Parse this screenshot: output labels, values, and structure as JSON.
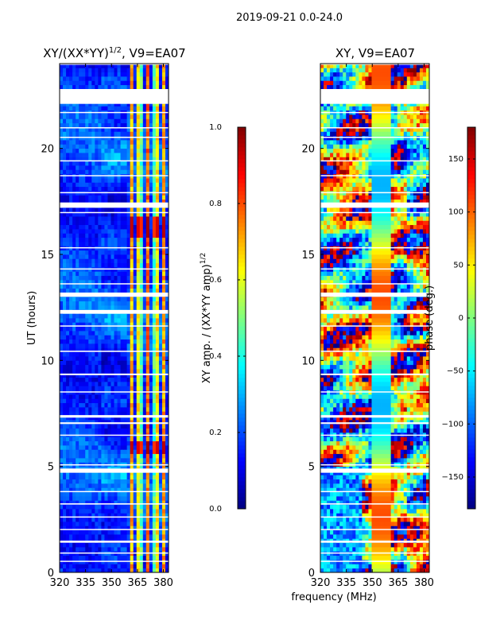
{
  "suptitle": "2019-09-21 0.0-24.0",
  "xlabel_shared": "frequency (MHz)",
  "colors": {
    "axis": "#000000",
    "gap": "#ffffff"
  },
  "chart_data": [
    {
      "type": "heatmap",
      "title_base": "XY/(XX*YY)",
      "title_sup": "1/2",
      "title_rest": ", V9=EA07",
      "xlabel": "",
      "ylabel": "UT (hours)",
      "xlim": [
        320,
        383
      ],
      "ylim": [
        0,
        24
      ],
      "x_ticks": [
        320,
        335,
        350,
        365,
        380
      ],
      "y_ticks": [
        0,
        5,
        10,
        15,
        20
      ],
      "x_tick_labels": [
        "320",
        "335",
        "350",
        "365",
        "380"
      ],
      "y_tick_labels": [
        "0",
        "5",
        "10",
        "15",
        "20"
      ],
      "colormap": "jet",
      "colorbar": {
        "label": "XY amp. / (XX*YY amp)",
        "label_sup": "1/2",
        "range": [
          0.0,
          1.0
        ],
        "ticks": [
          0.0,
          0.2,
          0.4,
          0.6,
          0.8,
          1.0
        ],
        "tick_labels": [
          "0.0",
          "0.2",
          "0.4",
          "0.6",
          "0.8",
          "1.0"
        ]
      },
      "quantity": "normalized XY amplitude",
      "typical_background": 0.12,
      "bright_channels_MHz": [
        362,
        366,
        371,
        376,
        380
      ],
      "hot_time_ranges_hours": [
        [
          5.6,
          6.1
        ],
        [
          15.8,
          16.8
        ]
      ]
    },
    {
      "type": "heatmap",
      "title_base": "XY, V9=EA07",
      "xlabel": "frequency (MHz)",
      "ylabel": "",
      "xlim": [
        320,
        383
      ],
      "ylim": [
        0,
        24
      ],
      "x_ticks": [
        320,
        335,
        350,
        365,
        380
      ],
      "y_ticks": [
        0,
        5,
        10,
        15,
        20
      ],
      "x_tick_labels": [
        "320",
        "335",
        "350",
        "365",
        "380"
      ],
      "y_tick_labels": [
        "0",
        "5",
        "10",
        "15",
        "20"
      ],
      "colormap": "jet",
      "colorbar": {
        "label": "phase (deg.)",
        "range": [
          -180,
          180
        ],
        "ticks": [
          -150,
          -100,
          -50,
          0,
          50,
          100,
          150
        ],
        "tick_labels": [
          "−150",
          "−100",
          "−50",
          "0",
          "50",
          "100",
          "150"
        ]
      },
      "quantity": "XY phase (deg.)"
    }
  ],
  "flagged_time_ranges_hours": [
    [
      22.1,
      22.8
    ],
    [
      21.7,
      21.72
    ],
    [
      17.2,
      17.45
    ],
    [
      13.0,
      13.2
    ],
    [
      12.2,
      12.38
    ],
    [
      4.7,
      4.9
    ],
    [
      1.4,
      1.5
    ],
    [
      7.3,
      7.42
    ],
    [
      7.0,
      7.08
    ],
    [
      9.3,
      9.38
    ],
    [
      10.4,
      10.46
    ],
    [
      14.3,
      14.34
    ],
    [
      3.2,
      3.26
    ],
    [
      2.0,
      2.05
    ],
    [
      0.5,
      0.55
    ],
    [
      6.45,
      6.5
    ],
    [
      18.7,
      18.74
    ],
    [
      19.4,
      19.44
    ],
    [
      20.5,
      20.55
    ],
    [
      11.6,
      11.65
    ],
    [
      15.3,
      15.34
    ],
    [
      8.5,
      8.54
    ],
    [
      5.05,
      5.1
    ],
    [
      3.8,
      3.84
    ],
    [
      2.6,
      2.64
    ],
    [
      0.9,
      0.94
    ],
    [
      17.9,
      17.94
    ],
    [
      20.95,
      21.0
    ],
    [
      16.95,
      17.0
    ],
    [
      13.6,
      13.64
    ],
    [
      23.95,
      24.0
    ]
  ]
}
